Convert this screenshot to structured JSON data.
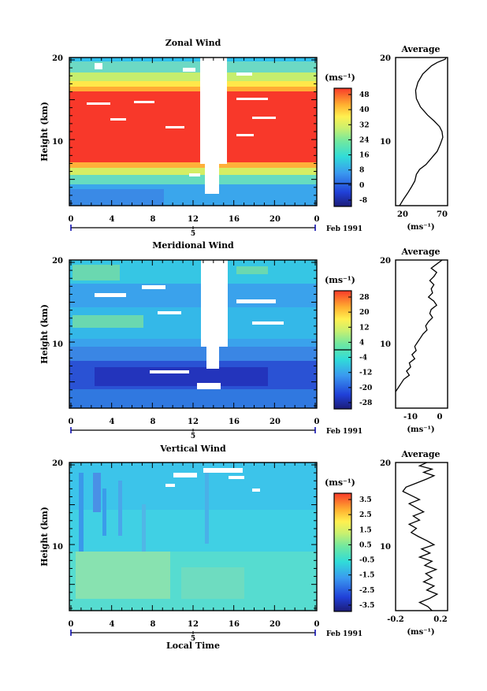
{
  "x_axis": {
    "label": "Local Time",
    "ticks": [
      "0",
      "4",
      "8",
      "12",
      "16",
      "20",
      "0"
    ],
    "day_label": "5",
    "date_label": "Feb 1991"
  },
  "chart_data": [
    {
      "name": "zonal",
      "type": "heatmap",
      "title": "Zonal Wind",
      "ylabel": "Height (km)",
      "y_ticks": [
        "20",
        "10"
      ],
      "xlim": [
        0,
        24
      ],
      "ylim": [
        2,
        20
      ],
      "unit_label": "(ms⁻¹)",
      "colorbar_ticks": [
        "48",
        "40",
        "32",
        "24",
        "16",
        "8",
        "0",
        "-8"
      ],
      "colorbar_range": [
        -10,
        52
      ],
      "colorbar_zero": 0,
      "profile": {
        "title": "Average",
        "x_ticks": [
          "20",
          "70"
        ],
        "xlim": [
          10,
          75
        ],
        "xlabel": "(ms⁻¹)",
        "y_ticks": [
          "20",
          "10"
        ],
        "points": [
          [
            73,
            20
          ],
          [
            72,
            19.8
          ],
          [
            62,
            19.4
          ],
          [
            55,
            19
          ],
          [
            44,
            18
          ],
          [
            38,
            17
          ],
          [
            35,
            16
          ],
          [
            36,
            15
          ],
          [
            41,
            14
          ],
          [
            50,
            13
          ],
          [
            58,
            12.3
          ],
          [
            65,
            11.6
          ],
          [
            68,
            11
          ],
          [
            69,
            10.3
          ],
          [
            66,
            9.5
          ],
          [
            62,
            8.6
          ],
          [
            55,
            7.8
          ],
          [
            48,
            7
          ],
          [
            40,
            6.4
          ],
          [
            36,
            5.8
          ],
          [
            34,
            5
          ],
          [
            30,
            4.3
          ],
          [
            25,
            3.5
          ],
          [
            20,
            2.8
          ],
          [
            15,
            2
          ]
        ]
      }
    },
    {
      "name": "meridional",
      "type": "heatmap",
      "title": "Meridional Wind",
      "ylabel": "Height (km)",
      "y_ticks": [
        "20",
        "10"
      ],
      "xlim": [
        0,
        24
      ],
      "ylim": [
        2,
        20
      ],
      "unit_label": "(ms⁻¹)",
      "colorbar_ticks": [
        "28",
        "20",
        "12",
        "4",
        "-4",
        "-12",
        "-20",
        "-28"
      ],
      "colorbar_range": [
        -32,
        32
      ],
      "colorbar_zero": 0,
      "profile": {
        "title": "Average",
        "x_ticks": [
          "-10",
          "0"
        ],
        "xlim": [
          -16,
          3
        ],
        "xlabel": "(ms⁻¹)",
        "y_ticks": [
          "20",
          "10"
        ],
        "points": [
          [
            1,
            20
          ],
          [
            -1,
            19.5
          ],
          [
            -3,
            19
          ],
          [
            -1,
            18.5
          ],
          [
            -2,
            18
          ],
          [
            -3.5,
            17.5
          ],
          [
            -2,
            17
          ],
          [
            -3,
            16.5
          ],
          [
            -2.5,
            16
          ],
          [
            -4,
            15.5
          ],
          [
            -2,
            15
          ],
          [
            -1,
            14.5
          ],
          [
            -3,
            14
          ],
          [
            -3.5,
            13.5
          ],
          [
            -2.5,
            13
          ],
          [
            -4,
            12.5
          ],
          [
            -5,
            12
          ],
          [
            -4.5,
            11.5
          ],
          [
            -6,
            11
          ],
          [
            -7,
            10.5
          ],
          [
            -8,
            10
          ],
          [
            -9,
            9.5
          ],
          [
            -8.5,
            9
          ],
          [
            -10,
            8.5
          ],
          [
            -9,
            8
          ],
          [
            -11,
            7.5
          ],
          [
            -10.5,
            7
          ],
          [
            -12,
            6.5
          ],
          [
            -11,
            6
          ],
          [
            -13,
            5.5
          ],
          [
            -14,
            5
          ],
          [
            -15,
            4.5
          ],
          [
            -16,
            4
          ]
        ]
      }
    },
    {
      "name": "vertical",
      "type": "heatmap",
      "title": "Vertical Wind",
      "ylabel": "Height (km)",
      "y_ticks": [
        "20",
        "10"
      ],
      "xlim": [
        0,
        24
      ],
      "ylim": [
        2,
        20
      ],
      "unit_label": "(ms⁻¹)",
      "colorbar_ticks": [
        "3.5",
        "2.5",
        "1.5",
        "0.5",
        "-0.5",
        "-1.5",
        "-2.5",
        "-3.5"
      ],
      "colorbar_range": [
        -4,
        4
      ],
      "colorbar_zero": null,
      "profile": {
        "title": "Average",
        "x_ticks": [
          "-0.2",
          "0.2"
        ],
        "xlim": [
          -0.25,
          0.25
        ],
        "xlabel": "(ms⁻¹)",
        "y_ticks": [
          "20",
          "10"
        ],
        "points": [
          [
            0.05,
            20
          ],
          [
            -0.02,
            19.6
          ],
          [
            0.1,
            19.2
          ],
          [
            0.02,
            18.8
          ],
          [
            0.12,
            18.4
          ],
          [
            0.05,
            18
          ],
          [
            -0.05,
            17.5
          ],
          [
            -0.15,
            17
          ],
          [
            -0.18,
            16.5
          ],
          [
            -0.1,
            16
          ],
          [
            -0.02,
            15.5
          ],
          [
            -0.12,
            15
          ],
          [
            -0.05,
            14.5
          ],
          [
            0.02,
            14
          ],
          [
            -0.08,
            13.5
          ],
          [
            -0.02,
            13
          ],
          [
            -0.12,
            12.5
          ],
          [
            -0.05,
            12
          ],
          [
            -0.1,
            11.5
          ],
          [
            -0.03,
            11
          ],
          [
            0.05,
            10.5
          ],
          [
            0.12,
            10
          ],
          [
            0.0,
            9.5
          ],
          [
            0.08,
            9
          ],
          [
            -0.02,
            8.5
          ],
          [
            0.1,
            8
          ],
          [
            0.03,
            7.5
          ],
          [
            0.14,
            7
          ],
          [
            0.04,
            6.5
          ],
          [
            0.1,
            6
          ],
          [
            0.02,
            5.5
          ],
          [
            0.12,
            5
          ],
          [
            0.05,
            4.5
          ],
          [
            0.15,
            4
          ],
          [
            0.08,
            3.5
          ],
          [
            -0.02,
            3
          ],
          [
            0.06,
            2.5
          ],
          [
            0.1,
            2
          ]
        ]
      }
    }
  ]
}
